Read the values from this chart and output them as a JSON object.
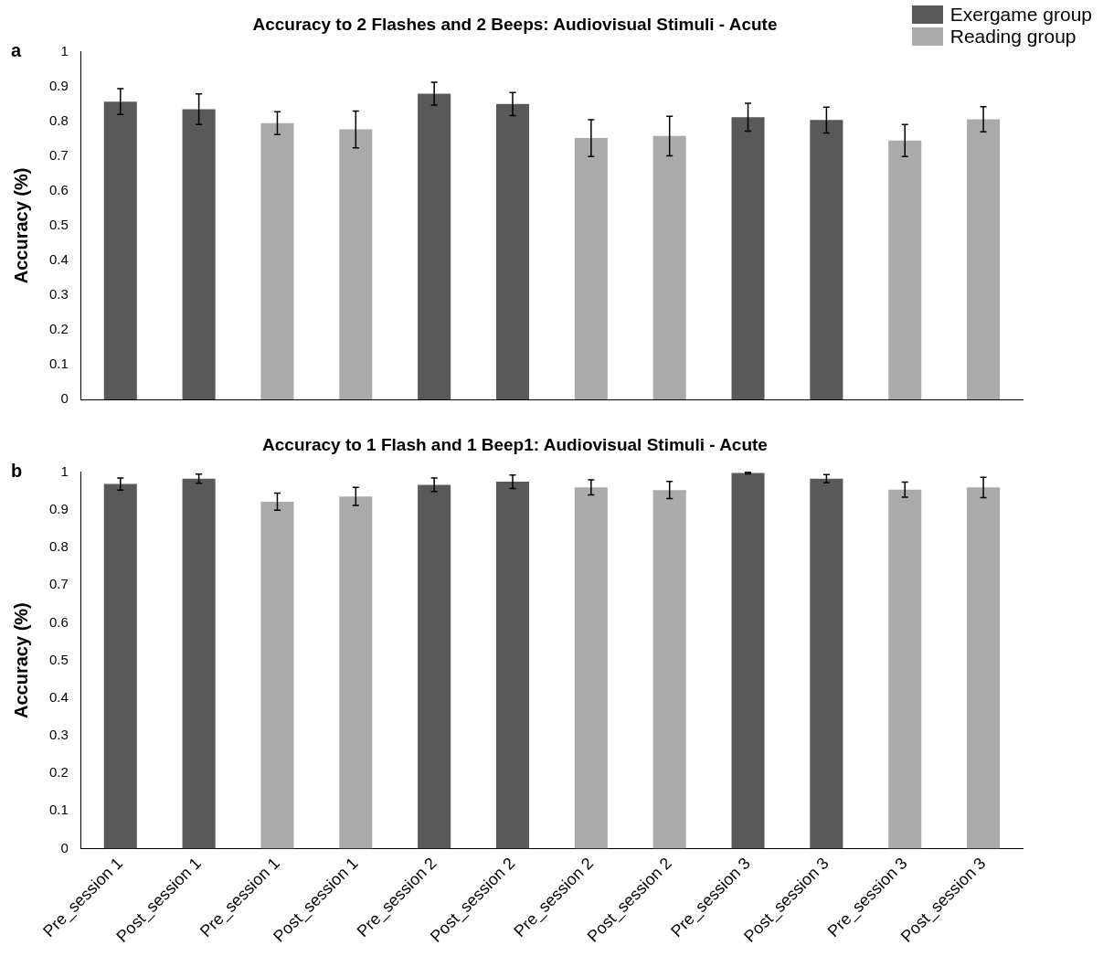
{
  "chart_data": [
    {
      "type": "bar",
      "title": "Accuracy to 2 Flashes and 2 Beeps: Audiovisual Stimuli - Acute",
      "ylabel": "Accuracy (%)",
      "annotations": [
        "a"
      ],
      "categories": [
        null,
        null,
        null,
        null,
        null,
        null,
        null,
        null,
        null,
        null,
        null,
        null
      ],
      "series": [
        {
          "name": "Exergame group",
          "color": "#595959",
          "values": [
            0.857,
            0.835,
            null,
            null,
            0.88,
            0.85,
            null,
            null,
            0.812,
            0.804,
            null,
            null
          ],
          "errors": [
            0.037,
            0.044,
            null,
            null,
            0.033,
            0.033,
            null,
            null,
            0.04,
            0.037,
            null,
            null
          ]
        },
        {
          "name": "Reading group",
          "color": "#aaaaaa",
          "values": [
            null,
            null,
            0.795,
            0.777,
            null,
            null,
            0.752,
            0.758,
            null,
            null,
            0.745,
            0.806
          ],
          "errors": [
            null,
            null,
            0.033,
            0.053,
            null,
            null,
            0.053,
            0.057,
            null,
            null,
            0.046,
            0.036
          ]
        }
      ],
      "ylim": [
        0,
        1
      ],
      "yticks": [
        0,
        0.1,
        0.2,
        0.3,
        0.4,
        0.5,
        0.6,
        0.7,
        0.8,
        0.9,
        1
      ],
      "grid": false,
      "legend": "top right",
      "tick_labels": "y"
    },
    {
      "type": "bar",
      "title": "Accuracy to 1 Flash and 1 Beep1: Audiovisual Stimuli - Acute",
      "ylabel": "Accuracy (%)",
      "annotations": [
        "b"
      ],
      "categories": [
        "Pre_session 1",
        "Post_session 1",
        "Pre_session 1",
        "Post_session 1",
        "Pre_session 2",
        "Post_session 2",
        "Pre_session 2",
        "Post_session 2",
        "Pre_session 3",
        "Post_session 3",
        "Pre_session 3",
        "Post_session 3"
      ],
      "series": [
        {
          "color": "#595959",
          "values": [
            0.969,
            0.983,
            null,
            null,
            0.967,
            0.975,
            null,
            null,
            0.998,
            0.983,
            null,
            null
          ],
          "errors": [
            0.016,
            0.012,
            null,
            null,
            0.018,
            0.018,
            null,
            null,
            0.002,
            0.011,
            null,
            null
          ]
        },
        {
          "color": "#aaaaaa",
          "values": [
            null,
            null,
            0.922,
            0.936,
            null,
            null,
            0.96,
            0.953,
            null,
            null,
            0.954,
            0.96
          ],
          "errors": [
            null,
            null,
            0.023,
            0.024,
            null,
            null,
            0.02,
            0.023,
            null,
            null,
            0.02,
            0.027
          ]
        }
      ],
      "ylim": [
        0,
        1
      ],
      "yticks": [
        0,
        0.1,
        0.2,
        0.3,
        0.4,
        0.5,
        0.6,
        0.7,
        0.8,
        0.9,
        1
      ],
      "grid": false
    }
  ]
}
